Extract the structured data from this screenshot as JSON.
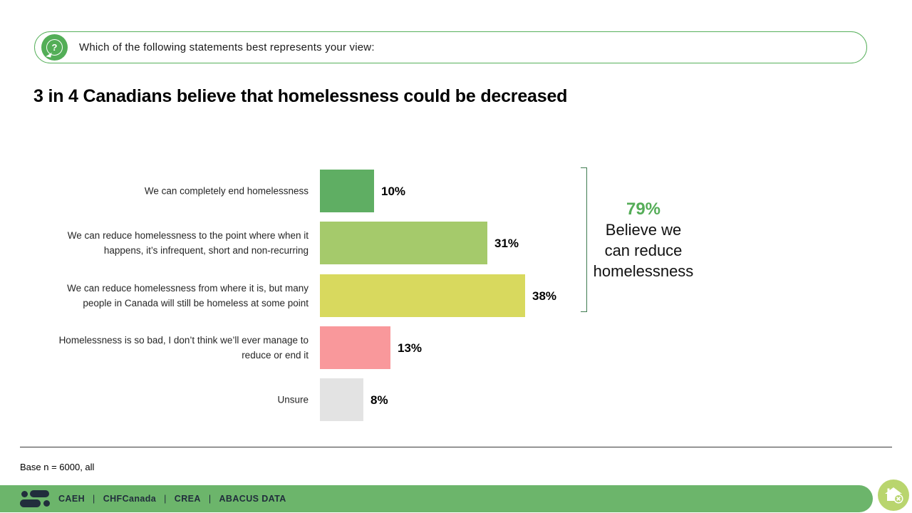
{
  "question_box": {
    "icon": "question-bubble-icon",
    "question_mark": "?",
    "text": "Which of the following statements best represents your view:"
  },
  "title": "3 in 4 Canadians believe that homelessness could be decreased",
  "chart_data": {
    "type": "bar",
    "orientation": "horizontal",
    "title": "3 in 4 Canadians believe that homelessness could be decreased",
    "categories": [
      "We can completely end homelessness",
      "We can reduce homelessness to the point where when it happens, it’s infrequent, short and non-recurring",
      "We can reduce homelessness from where it is, but many people in Canada will still be homeless at some point",
      "Homelessness is so bad, I don’t think we’ll ever manage to reduce or end it",
      "Unsure"
    ],
    "category_lines": [
      [
        "We can completely end homelessness"
      ],
      [
        "We can reduce homelessness to the point where when it",
        "happens, it’s infrequent, short and non-recurring"
      ],
      [
        "We can reduce homelessness from where it is, but many",
        "people in Canada will still be homeless at some point"
      ],
      [
        "Homelessness is so bad, I don’t think we’ll ever manage to",
        "reduce or end it"
      ],
      [
        "Unsure"
      ]
    ],
    "values": [
      10,
      31,
      38,
      13,
      8
    ],
    "value_labels": [
      "10%",
      "31%",
      "38%",
      "13%",
      "8%"
    ],
    "bar_colors": [
      "#5fae63",
      "#a5ca6b",
      "#d8d95e",
      "#f9989b",
      "#e3e3e3"
    ],
    "xlim": [
      0,
      100
    ],
    "grid": false,
    "legend": "none",
    "annotation": {
      "value": "79%",
      "lines": [
        "Believe we",
        "can reduce",
        "homelessness"
      ],
      "covers_categories": [
        0,
        1,
        2
      ],
      "value_color": "#55ad58",
      "bracket_color": "#3e7b50"
    }
  },
  "footnote": "Base n = 6000, all",
  "footer": {
    "orgs": [
      "CAEH",
      "CHFCanada",
      "CREA",
      "ABACUS DATA"
    ],
    "separator": "|",
    "bar_color": "#6cb56b",
    "text_color": "#212d3c"
  },
  "colors": {
    "question_border_green": "#57b05b",
    "icon_green": "#53ae57",
    "home_badge_green": "#b9d56e"
  }
}
